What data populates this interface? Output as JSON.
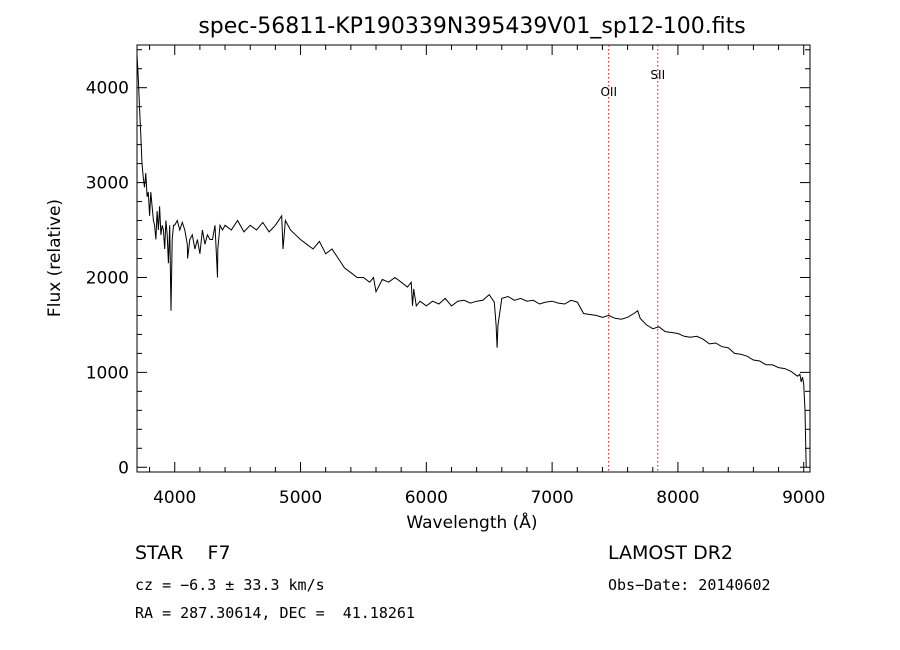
{
  "chart_data": {
    "type": "line",
    "title": "spec-56811-KP190339N395439V01_sp12-100.fits",
    "xlabel": "Wavelength (Å)",
    "ylabel": "Flux (relative)",
    "xlim": [
      3700,
      9050
    ],
    "ylim": [
      -50,
      4450
    ],
    "xticks": [
      4000,
      5000,
      6000,
      7000,
      8000,
      9000
    ],
    "yticks": [
      0,
      1000,
      2000,
      3000,
      4000
    ],
    "grid": false,
    "series": [
      {
        "x": [
          3700,
          3710,
          3720,
          3730,
          3740,
          3750,
          3760,
          3770,
          3780,
          3790,
          3800,
          3810,
          3820,
          3830,
          3840,
          3850,
          3860,
          3870,
          3880,
          3890,
          3900,
          3910,
          3920,
          3930,
          3940,
          3950,
          3960,
          3970,
          3980,
          3990,
          4000,
          4020,
          4040,
          4060,
          4080,
          4100,
          4102,
          4120,
          4140,
          4160,
          4180,
          4200,
          4220,
          4240,
          4260,
          4280,
          4300,
          4320,
          4340,
          4342,
          4360,
          4380,
          4400,
          4450,
          4500,
          4550,
          4600,
          4650,
          4700,
          4750,
          4800,
          4850,
          4861,
          4880,
          4920,
          4960,
          5000,
          5050,
          5100,
          5150,
          5200,
          5250,
          5300,
          5350,
          5400,
          5450,
          5500,
          5550,
          5580,
          5600,
          5650,
          5700,
          5750,
          5800,
          5850,
          5880,
          5890,
          5900,
          5920,
          5950,
          6000,
          6050,
          6100,
          6150,
          6200,
          6250,
          6300,
          6350,
          6400,
          6450,
          6500,
          6540,
          6555,
          6563,
          6570,
          6600,
          6650,
          6700,
          6750,
          6800,
          6850,
          6900,
          6950,
          7000,
          7050,
          7100,
          7150,
          7200,
          7250,
          7300,
          7350,
          7400,
          7450,
          7500,
          7550,
          7600,
          7650,
          7680,
          7700,
          7750,
          7800,
          7850,
          7900,
          7950,
          8000,
          8050,
          8100,
          8150,
          8200,
          8250,
          8300,
          8350,
          8400,
          8450,
          8500,
          8550,
          8600,
          8650,
          8700,
          8750,
          8800,
          8850,
          8900,
          8920,
          8950,
          8970,
          8980,
          8990,
          9000,
          9010,
          9020
        ],
        "values": [
          4350,
          4100,
          3800,
          3500,
          3200,
          3050,
          2950,
          3100,
          2850,
          2900,
          2650,
          2900,
          2750,
          2600,
          2550,
          2400,
          2700,
          2500,
          2750,
          2450,
          2550,
          2500,
          2300,
          2600,
          2450,
          2150,
          2550,
          1650,
          2400,
          2550,
          2550,
          2600,
          2500,
          2580,
          2500,
          2350,
          2200,
          2400,
          2450,
          2300,
          2400,
          2250,
          2500,
          2350,
          2450,
          2400,
          2400,
          2550,
          2000,
          2300,
          2550,
          2500,
          2550,
          2500,
          2600,
          2480,
          2550,
          2500,
          2580,
          2480,
          2550,
          2650,
          2300,
          2600,
          2500,
          2450,
          2400,
          2350,
          2300,
          2380,
          2250,
          2300,
          2200,
          2100,
          2050,
          2000,
          2000,
          1950,
          2000,
          1850,
          1980,
          1950,
          2000,
          1950,
          1900,
          1950,
          1700,
          1880,
          1700,
          1750,
          1700,
          1750,
          1720,
          1780,
          1700,
          1750,
          1760,
          1730,
          1750,
          1760,
          1820,
          1740,
          1500,
          1260,
          1500,
          1780,
          1800,
          1760,
          1780,
          1750,
          1760,
          1720,
          1740,
          1750,
          1730,
          1720,
          1760,
          1740,
          1620,
          1610,
          1600,
          1580,
          1600,
          1570,
          1560,
          1580,
          1620,
          1650,
          1570,
          1500,
          1460,
          1480,
          1430,
          1420,
          1410,
          1380,
          1370,
          1380,
          1350,
          1300,
          1310,
          1270,
          1260,
          1200,
          1190,
          1170,
          1130,
          1120,
          1080,
          1080,
          1050,
          1040,
          1010,
          990,
          960,
          980,
          900,
          950,
          880,
          600,
          0
        ]
      }
    ],
    "lines": [
      {
        "label": "OII",
        "x": 7450
      },
      {
        "label": "SII",
        "x": 7840
      }
    ],
    "line_color": "#d00000"
  },
  "info": {
    "object": "STAR    F7",
    "cz": "cz = −6.3 ± 33.3 km/s",
    "radec": "RA = 287.30614, DEC =  41.18261",
    "survey": "LAMOST DR2",
    "obsdate": "Obs−Date: 20140602"
  }
}
